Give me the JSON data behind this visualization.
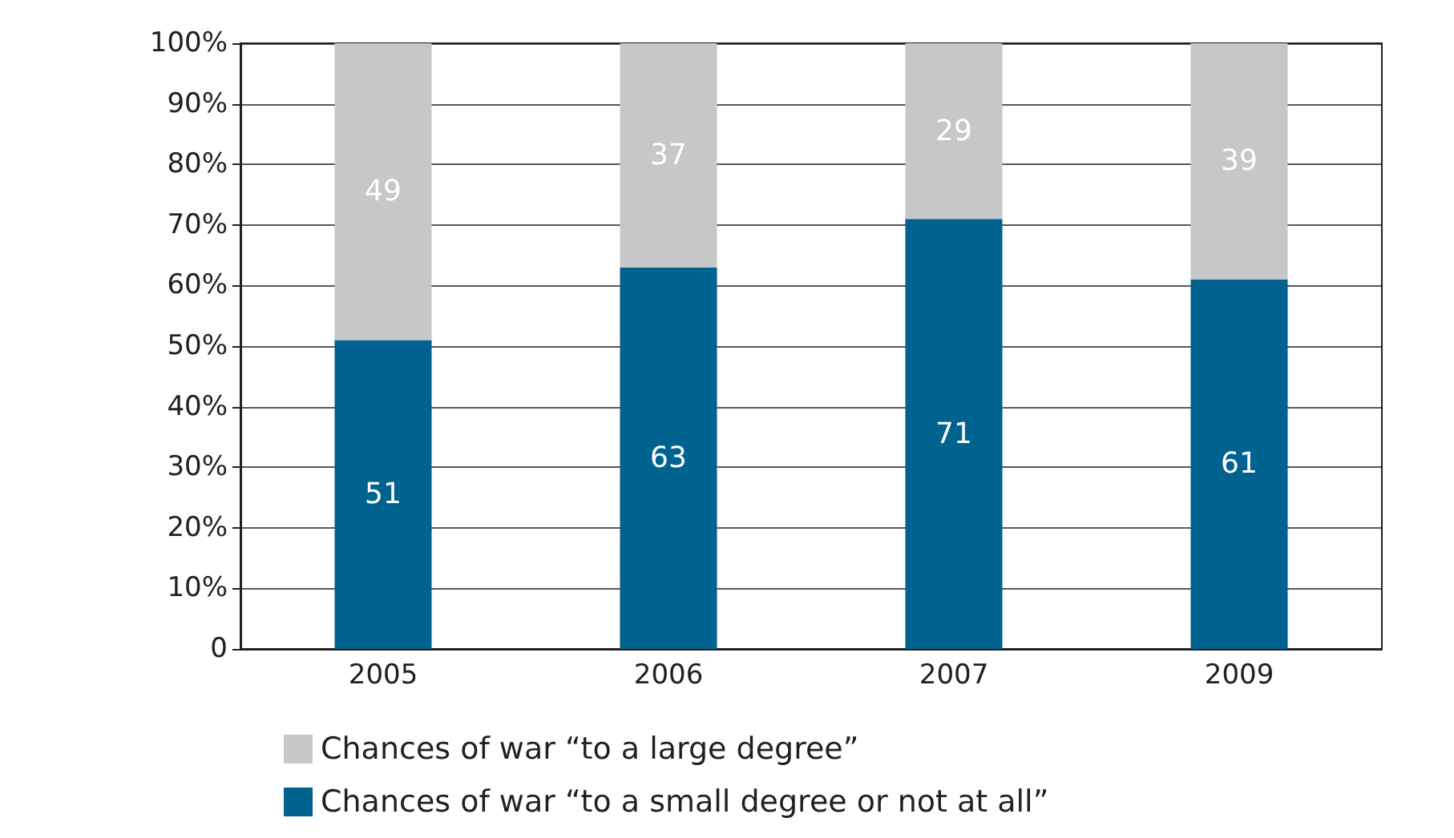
{
  "chart_data": {
    "type": "bar",
    "stacked": true,
    "categories": [
      "2005",
      "2006",
      "2007",
      "2009"
    ],
    "series": [
      {
        "name": "Chances of war “to a small degree or not at all”",
        "color": "#00628f",
        "values": [
          51,
          63,
          71,
          61
        ]
      },
      {
        "name": "Chances of war “to a large degree”",
        "color": "#c6c7c8",
        "values": [
          49,
          37,
          29,
          39
        ]
      }
    ],
    "ylim": [
      0,
      100
    ],
    "yticks": [
      {
        "value": 0,
        "label": "0"
      },
      {
        "value": 10,
        "label": "10%"
      },
      {
        "value": 20,
        "label": "20%"
      },
      {
        "value": 30,
        "label": "30%"
      },
      {
        "value": 40,
        "label": "40%"
      },
      {
        "value": 50,
        "label": "50%"
      },
      {
        "value": 60,
        "label": "60%"
      },
      {
        "value": 70,
        "label": "70%"
      },
      {
        "value": 80,
        "label": "80%"
      },
      {
        "value": 90,
        "label": "90%"
      },
      {
        "value": 100,
        "label": "100%"
      }
    ],
    "grid": "y",
    "legend": "bottom",
    "data_labels": true
  }
}
